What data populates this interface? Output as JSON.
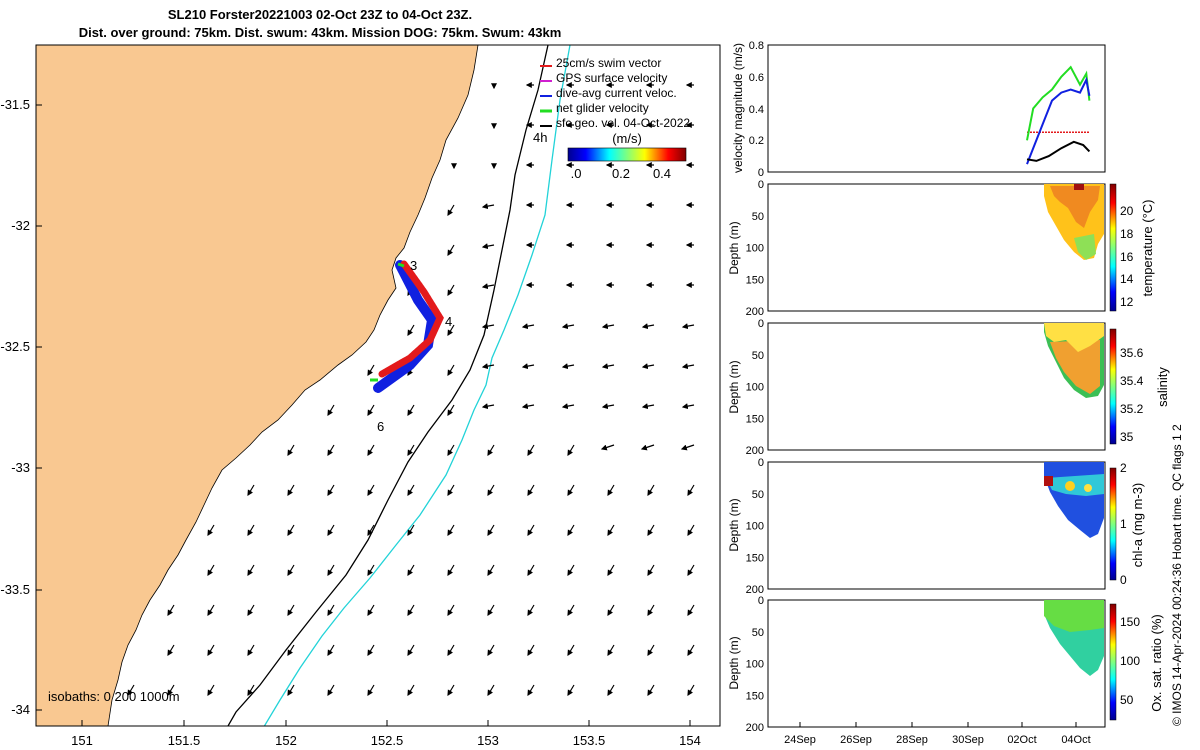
{
  "header": {
    "title_line1": "SL210 Forster20221003 02-Oct 23Z to 04-Oct 23Z.",
    "title_line2": "Dist. over ground: 75km. Dist. swum: 43km. Mission DOG: 75km. Swum: 43km"
  },
  "map": {
    "lon_ticks": [
      "151",
      "151.5",
      "152",
      "152.5",
      "153",
      "153.5",
      "154"
    ],
    "lat_ticks": [
      "-31.5",
      "-32",
      "-32.5",
      "-33",
      "-33.5",
      "-34"
    ],
    "legend": [
      {
        "label": "25cm/s swim vector",
        "color": "#e31a1c"
      },
      {
        "label": "GPS surface velocity",
        "color": "#d01fd0"
      },
      {
        "label": "dive-avg current veloc.",
        "color": "#1020e0"
      },
      {
        "label": "net glider velocity",
        "color": "#22dd22"
      },
      {
        "label": "sfc geo. vel. 04-Oct-2022",
        "color": "#000000"
      }
    ],
    "speed_colorbar_label": "(m/s)",
    "speed_colorbar_ticks": [
      ".0",
      "0.2",
      "0.4"
    ],
    "day_markers": [
      "4h",
      "3",
      "4",
      "6"
    ],
    "isobaths_label": "isobaths: 0   200  1000m",
    "land_color": "#f9c891",
    "isobath_200_color": "#000000",
    "isobath_1000_color": "#22d3d8"
  },
  "chart_data": [
    {
      "type": "line",
      "ylabel": "velocity magnitude (m/s)",
      "ylim": [
        0,
        0.8
      ],
      "yticks": [
        "0",
        "0.2",
        "0.4",
        "0.6",
        "0.8"
      ],
      "series": [
        {
          "color": "#e31a1c",
          "x": [
            8.3,
            8.6,
            9,
            9.5,
            10,
            10.3
          ],
          "values": [
            0.25,
            0.25,
            0.25,
            0.25,
            0.25,
            0.25
          ]
        },
        {
          "color": "#22dd22",
          "x": [
            8.3,
            8.5,
            8.8,
            9.1,
            9.4,
            9.7,
            10.0,
            10.2,
            10.3
          ],
          "values": [
            0.2,
            0.4,
            0.47,
            0.52,
            0.6,
            0.66,
            0.55,
            0.62,
            0.45
          ]
        },
        {
          "color": "#1020e0",
          "x": [
            8.3,
            8.5,
            8.8,
            9.1,
            9.4,
            9.7,
            10.0,
            10.2,
            10.3
          ],
          "values": [
            0.05,
            0.15,
            0.3,
            0.45,
            0.5,
            0.52,
            0.5,
            0.58,
            0.48
          ]
        },
        {
          "color": "#000000",
          "x": [
            8.3,
            8.6,
            9.0,
            9.4,
            9.8,
            10.1,
            10.3
          ],
          "values": [
            0.08,
            0.07,
            0.1,
            0.15,
            0.19,
            0.17,
            0.13
          ]
        }
      ]
    },
    {
      "type": "heatmap",
      "ylabel": "Depth (m)",
      "cbar_label": "temperature (°C)",
      "cbar_ticks": [
        "12",
        "14",
        "16",
        "18",
        "20"
      ],
      "clim": [
        12,
        22
      ],
      "ylim": [
        0,
        200
      ],
      "yticks": [
        "0",
        "50",
        "100",
        "150",
        "200"
      ]
    },
    {
      "type": "heatmap",
      "ylabel": "Depth (m)",
      "cbar_label": "salinity",
      "cbar_ticks": [
        "35",
        "35.2",
        "35.4",
        "35.6"
      ],
      "clim": [
        34.95,
        35.8
      ],
      "ylim": [
        0,
        200
      ],
      "yticks": [
        "0",
        "50",
        "100",
        "150",
        "200"
      ]
    },
    {
      "type": "heatmap",
      "ylabel": "Depth (m)",
      "cbar_label": "chl-a (mg m-3)",
      "cbar_ticks": [
        "0",
        "1",
        "2"
      ],
      "clim": [
        0,
        2
      ],
      "ylim": [
        0,
        200
      ],
      "yticks": [
        "0",
        "50",
        "100",
        "150",
        "200"
      ]
    },
    {
      "type": "heatmap",
      "ylabel": "Depth (m)",
      "cbar_label": "Ox. sat. ratio (%)",
      "cbar_ticks": [
        "50",
        "100",
        "150"
      ],
      "clim": [
        30,
        175
      ],
      "ylim": [
        0,
        200
      ],
      "yticks": [
        "0",
        "50",
        "100",
        "150",
        "200"
      ]
    }
  ],
  "time_axis": {
    "labels": [
      "24Sep",
      "26Sep",
      "28Sep",
      "30Sep",
      "02Oct",
      "04Oct"
    ]
  },
  "footer": {
    "credit": "© IMOS 14-Apr-2024 00:24:36 Hobart time. QC flags 1  2"
  }
}
